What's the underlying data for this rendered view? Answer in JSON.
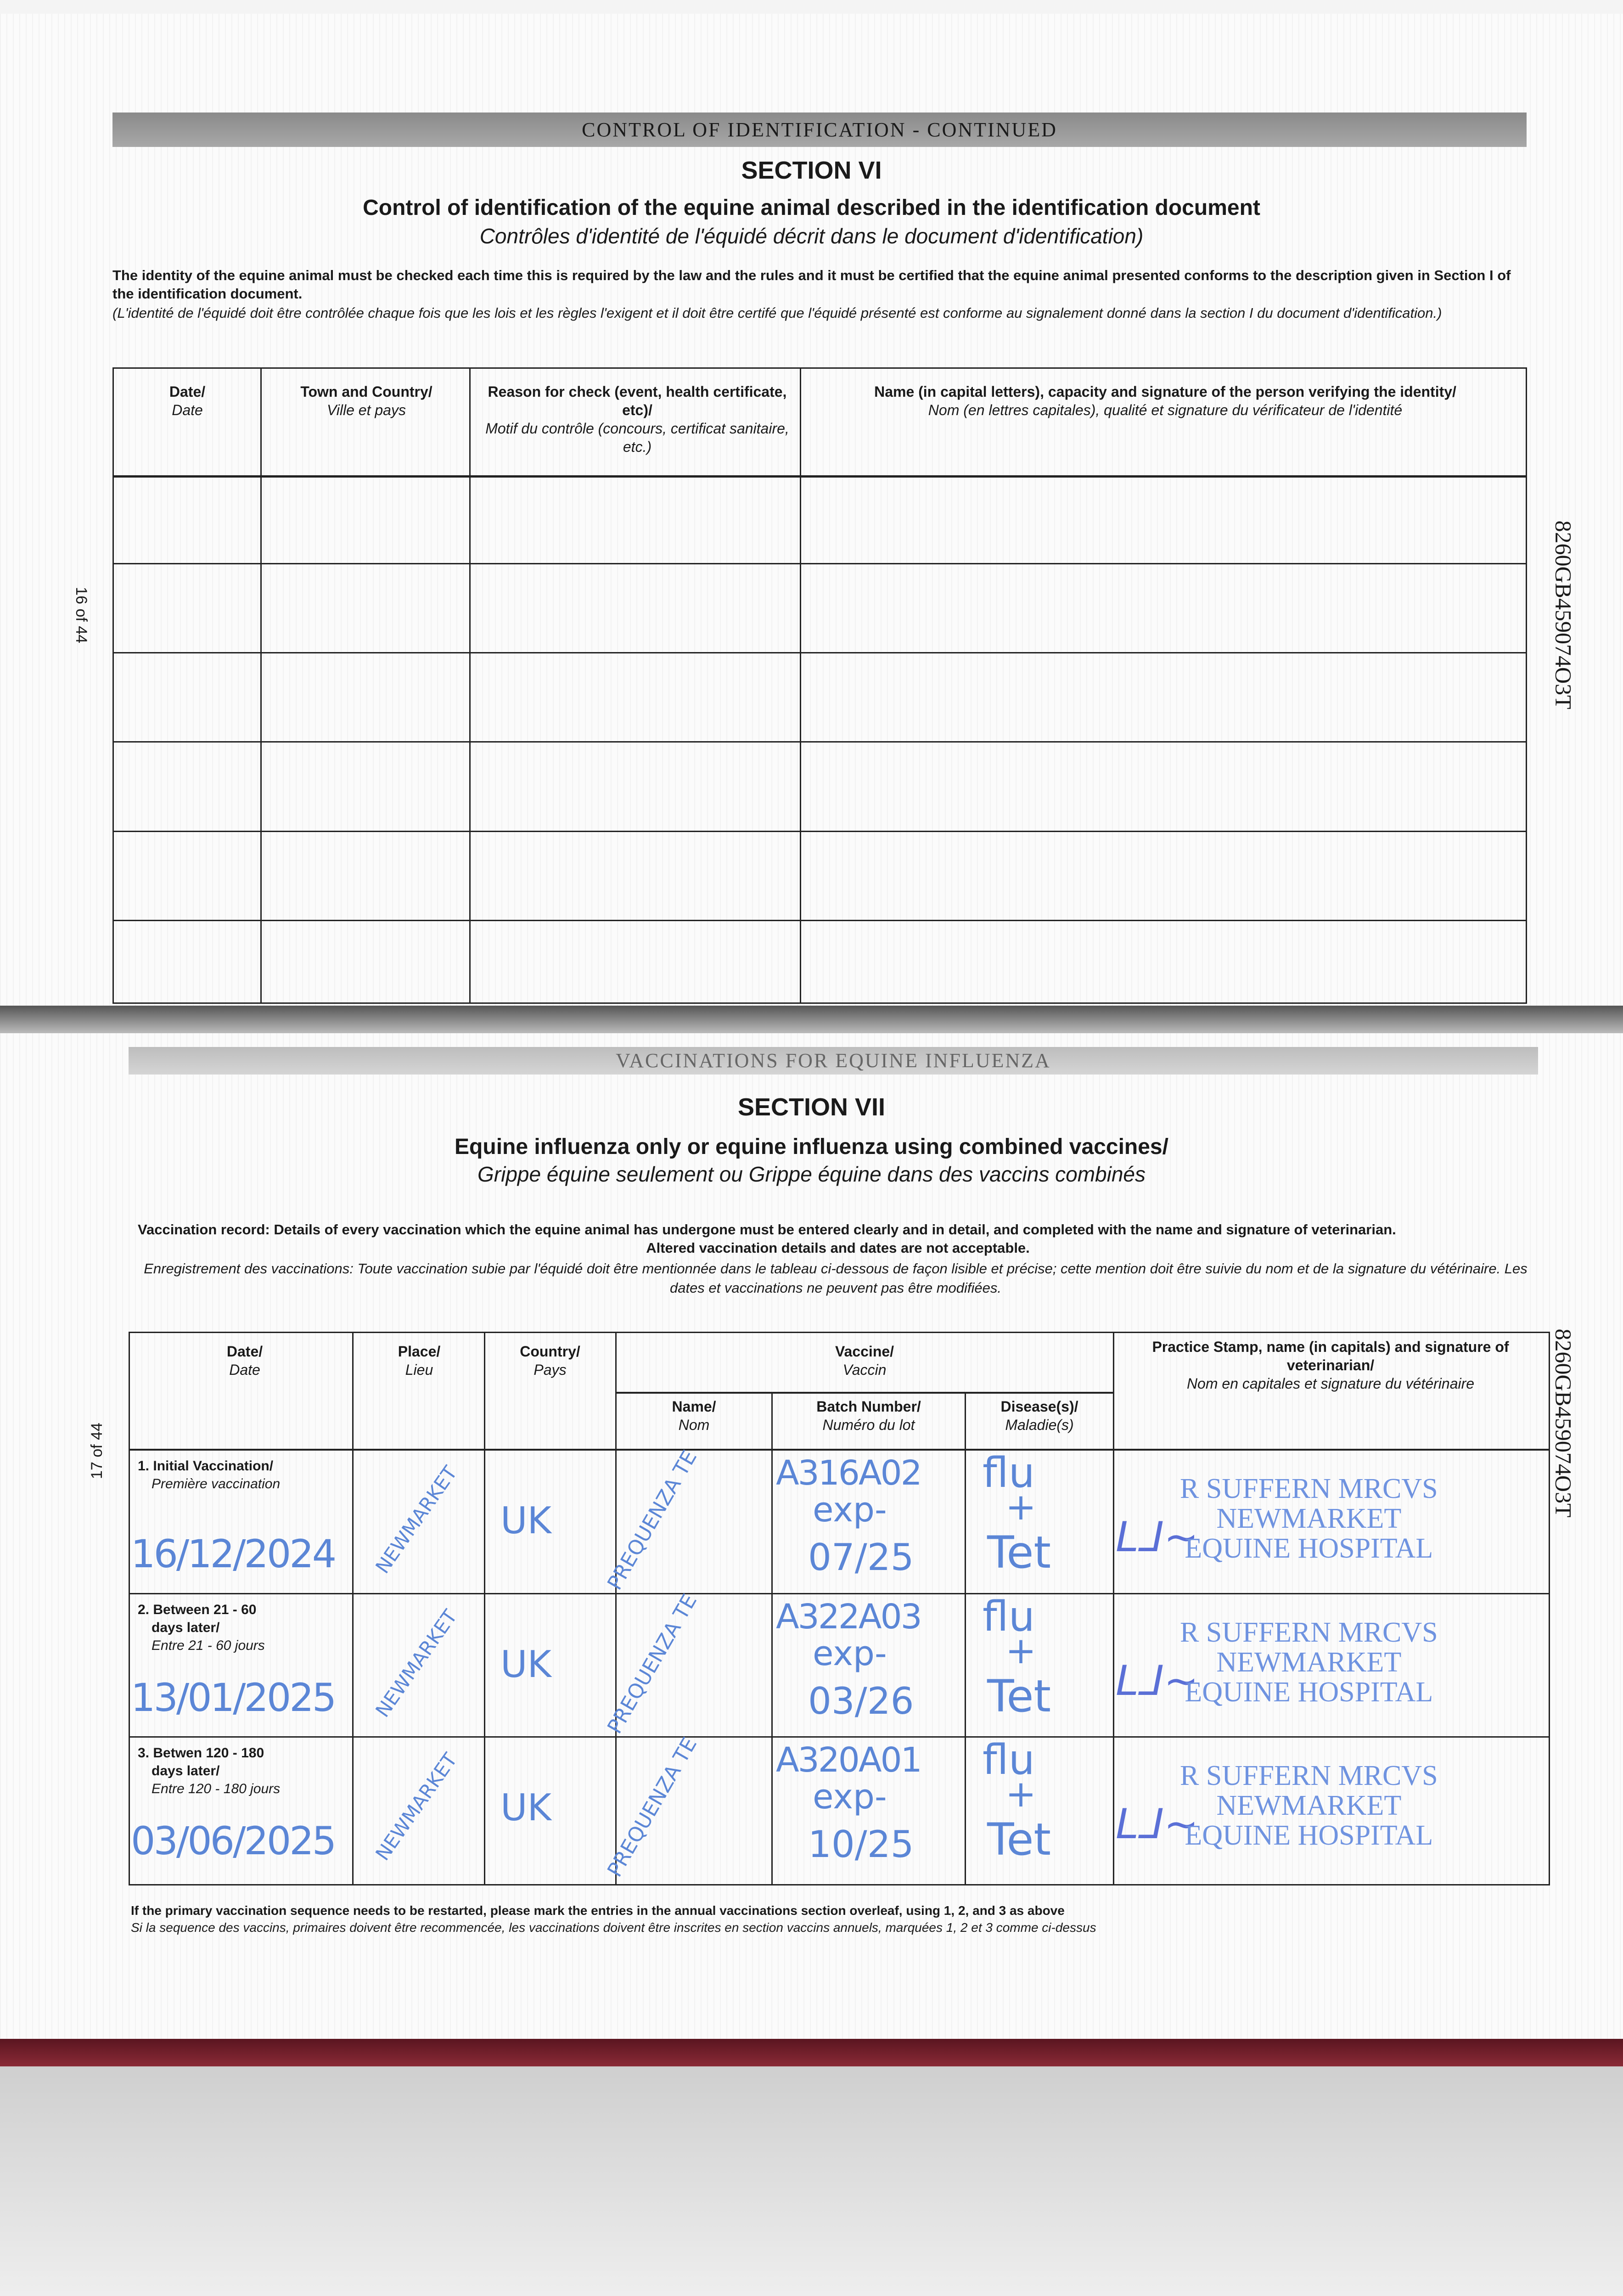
{
  "section6": {
    "band": "CONTROL OF IDENTIFICATION - CONTINUED",
    "heading": "SECTION VI",
    "title": "Control of identification of the equine animal described in the identification document",
    "subtitle": "Contrôles d'identité de l'équidé décrit dans le document d'identification)",
    "para_en": "The identity of the equine animal must be checked each time this is required by the law and the rules and it must be certified that the equine animal presented conforms to the description given in Section I of the identification document.",
    "para_fr": "(L'identité de l'équidé doit être contrôlée chaque fois que les lois et les règles l'exigent et il doit être certifé que l'équidé présenté est conforme au signalement donné dans la section I du document d'identification.)",
    "columns": [
      {
        "en": "Date/",
        "fr": "Date"
      },
      {
        "en": "Town and Country/",
        "fr": "Ville et pays"
      },
      {
        "en": "Reason for check (event, health certificate, etc)/",
        "fr": "Motif du contrôle (concours, certificat sanitaire, etc.)"
      },
      {
        "en": "Name (in capital letters), capacity and signature of the person verifying the identity/",
        "fr": "Nom (en lettres capitales), qualité et signature du vérificateur de l'identité"
      }
    ],
    "page_number": "16 of 44",
    "doc_id": "8260GB459074O3T"
  },
  "section7": {
    "band": "VACCINATIONS FOR EQUINE INFLUENZA",
    "heading": "SECTION VII",
    "title": "Equine influenza only or equine influenza using combined vaccines/",
    "subtitle": "Grippe équine seulement ou Grippe équine dans des vaccins combinés",
    "para_en1": "Vaccination record: Details of every vaccination which the equine animal has undergone must be entered clearly and in detail, and completed with the name and signature of veterinarian.",
    "para_en2": "Altered vaccination details and dates are not acceptable.",
    "para_fr": "Enregistrement des vaccinations: Toute vaccination subie par l'équidé doit être mentionnée dans le tableau ci-dessous de façon lisible et précise; cette mention doit être suivie du nom et de la signature du vétérinaire. Les dates et vaccinations ne peuvent pas être modifiées.",
    "headers": {
      "date": {
        "en": "Date/",
        "fr": "Date"
      },
      "place": {
        "en": "Place/",
        "fr": "Lieu"
      },
      "country": {
        "en": "Country/",
        "fr": "Pays"
      },
      "vaccine": {
        "en": "Vaccine/",
        "fr": "Vaccin"
      },
      "name": {
        "en": "Name/",
        "fr": "Nom"
      },
      "batch": {
        "en": "Batch Number/",
        "fr": "Numéro du lot"
      },
      "disease": {
        "en": "Disease(s)/",
        "fr": "Maladie(s)"
      },
      "stamp": {
        "en": "Practice Stamp, name (in capitals) and signature of veterinarian/",
        "fr": "Nom en capitales et signature du vétérinaire"
      }
    },
    "rows": [
      {
        "label_en1": "1. Initial Vaccination/",
        "label_en2": "",
        "label_fr": "Première vaccination",
        "date": "16/12/2024",
        "place": "NEWMARKET",
        "country": "UK",
        "name": "PREQUENZA TE",
        "batch": "A316A02",
        "exp": "exp-",
        "exp_date": "07/25",
        "disease1": "flu",
        "plus": "+",
        "disease2": "Tet",
        "stamp1": "R SUFFERN MRCVS",
        "stamp2": "NEWMARKET",
        "stamp3": "EQUINE HOSPITAL"
      },
      {
        "label_en1": "2. Between 21 - 60",
        "label_en2": "days later/",
        "label_fr": "Entre 21 - 60 jours",
        "date": "13/01/2025",
        "place": "NEWMARKET",
        "country": "UK",
        "name": "PREQUENZA TE",
        "batch": "A322A03",
        "exp": "exp-",
        "exp_date": "03/26",
        "disease1": "flu",
        "plus": "+",
        "disease2": "Tet",
        "stamp1": "R SUFFERN MRCVS",
        "stamp2": "NEWMARKET",
        "stamp3": "EQUINE HOSPITAL"
      },
      {
        "label_en1": "3. Betwen 120 - 180",
        "label_en2": "days later/",
        "label_fr": "Entre 120 - 180 jours",
        "date": "03/06/2025",
        "place": "NEWMARKET",
        "country": "UK",
        "name": "PREQUENZA TE",
        "batch": "A320A01",
        "exp": "exp-",
        "exp_date": "10/25",
        "disease1": "flu",
        "plus": "+",
        "disease2": "Tet",
        "stamp1": "R SUFFERN MRCVS",
        "stamp2": "NEWMARKET",
        "stamp3": "EQUINE HOSPITAL"
      }
    ],
    "footnote_en": "If the primary vaccination sequence needs to be restarted, please mark the entries in the annual vaccinations section overleaf, using 1, 2, and 3 as above",
    "footnote_fr": "Si la sequence des vaccins, primaires doivent être recommencée, les vaccinations doivent être inscrites en section vaccins annuels, marquées 1, 2 et 3 comme ci-dessus",
    "page_number": "17 of 44",
    "doc_id": "8260GB459074O3T"
  },
  "colors": {
    "ink": "#5b86d6",
    "stamp": "#6f93e0",
    "band": "#9a9a9a",
    "cover": "#7a1f2b"
  }
}
